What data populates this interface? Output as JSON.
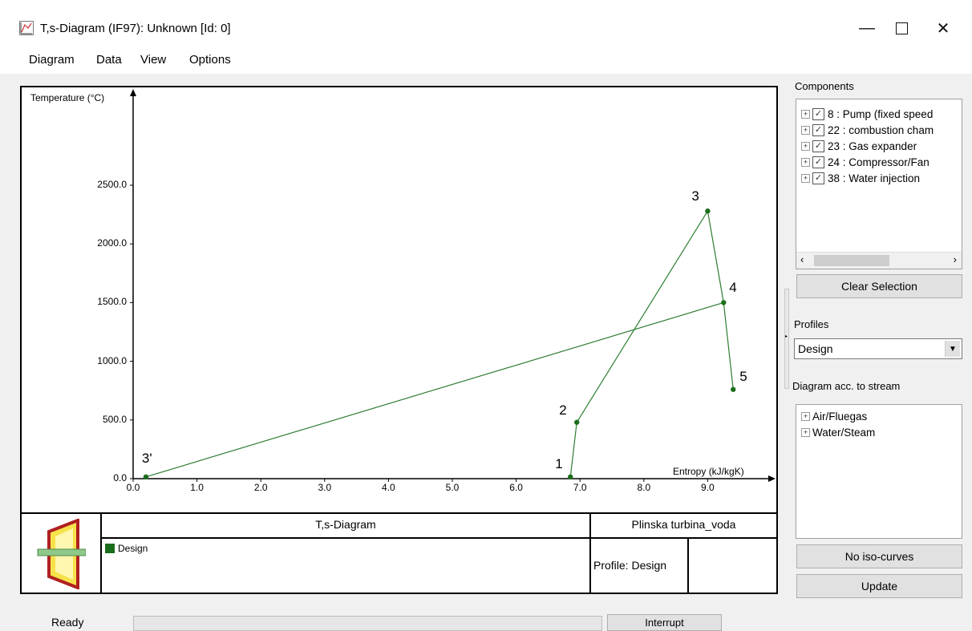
{
  "window": {
    "title": "T,s-Diagram (IF97): Unknown [Id: 0]"
  },
  "menu": [
    "Diagram",
    "Data",
    "View",
    "Options"
  ],
  "chart_data": {
    "type": "line",
    "xlabel": "Entropy (kJ/kgK)",
    "ylabel": "Temperature (°C)",
    "xlim": [
      0,
      10
    ],
    "ylim": [
      0,
      2500
    ],
    "x_ticks": [
      "0.0",
      "1.0",
      "2.0",
      "3.0",
      "4.0",
      "5.0",
      "6.0",
      "7.0",
      "8.0",
      "9.0"
    ],
    "y_ticks": [
      "0.0",
      "500.0",
      "1000.0",
      "1500.0",
      "2000.0",
      "2500.0"
    ],
    "series": [
      {
        "name": "Design",
        "color": "#2e7d32",
        "points": [
          {
            "label": "3'",
            "x": 0.2,
            "y": 15
          },
          {
            "label": "4",
            "x": 9.25,
            "y": 1500
          },
          {
            "label": "3",
            "x": 9.0,
            "y": 2280
          },
          {
            "label": "2",
            "x": 6.95,
            "y": 480
          },
          {
            "label": "1",
            "x": 6.85,
            "y": 15
          },
          {
            "label": "5",
            "x": 9.4,
            "y": 760
          }
        ],
        "segments": [
          [
            0,
            1
          ],
          [
            1,
            2
          ],
          [
            2,
            3
          ],
          [
            3,
            4
          ],
          [
            1,
            5
          ]
        ]
      }
    ]
  },
  "footer": {
    "diagram_title": "T,s-Diagram",
    "project": "Plinska turbina_voda",
    "legend_label": "Design",
    "profile_text": "Profile: Design"
  },
  "right_panel": {
    "components_label": "Components",
    "components": [
      "8 : Pump (fixed speed",
      "22 : combustion cham",
      "23 : Gas expander",
      "24 : Compressor/Fan",
      "38 : Water injection"
    ],
    "clear_selection": "Clear Selection",
    "profiles_label": "Profiles",
    "profile_value": "Design",
    "stream_label": "Diagram acc. to stream",
    "streams": [
      "Air/Fluegas",
      "Water/Steam"
    ],
    "no_iso_curves": "No iso-curves",
    "update": "Update"
  },
  "status": {
    "ready": "Ready",
    "interrupt": "Interrupt"
  }
}
